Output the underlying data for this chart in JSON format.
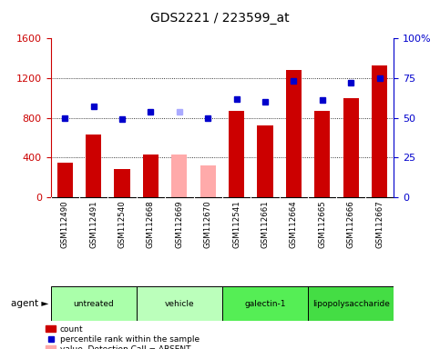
{
  "title": "GDS2221 / 223599_at",
  "samples": [
    "GSM112490",
    "GSM112491",
    "GSM112540",
    "GSM112668",
    "GSM112669",
    "GSM112670",
    "GSM112541",
    "GSM112661",
    "GSM112664",
    "GSM112665",
    "GSM112666",
    "GSM112667"
  ],
  "bar_values": [
    350,
    630,
    280,
    430,
    430,
    320,
    870,
    720,
    1280,
    870,
    1000,
    1330
  ],
  "bar_colors": [
    "#cc0000",
    "#cc0000",
    "#cc0000",
    "#cc0000",
    "#ffaaaa",
    "#ffaaaa",
    "#cc0000",
    "#cc0000",
    "#cc0000",
    "#cc0000",
    "#cc0000",
    "#cc0000"
  ],
  "rank_values": [
    50,
    57,
    49,
    54,
    54,
    50,
    62,
    60,
    73,
    61,
    72,
    75
  ],
  "rank_colors": [
    "#0000cc",
    "#0000cc",
    "#0000cc",
    "#0000cc",
    "#aaaaff",
    "#0000cc",
    "#0000cc",
    "#0000cc",
    "#0000cc",
    "#0000cc",
    "#0000cc",
    "#0000cc"
  ],
  "agents": [
    {
      "label": "untreated",
      "start": 0,
      "end": 3,
      "color": "#aaffaa"
    },
    {
      "label": "vehicle",
      "start": 3,
      "end": 6,
      "color": "#bbffbb"
    },
    {
      "label": "galectin-1",
      "start": 6,
      "end": 9,
      "color": "#55ee55"
    },
    {
      "label": "lipopolysaccharide",
      "start": 9,
      "end": 12,
      "color": "#44dd44"
    }
  ],
  "ylim_left": [
    0,
    1600
  ],
  "ylim_right": [
    0,
    100
  ],
  "yticks_left": [
    0,
    400,
    800,
    1200,
    1600
  ],
  "yticks_right": [
    0,
    25,
    50,
    75,
    100
  ],
  "ylabel_left_color": "#cc0000",
  "ylabel_right_color": "#0000cc"
}
